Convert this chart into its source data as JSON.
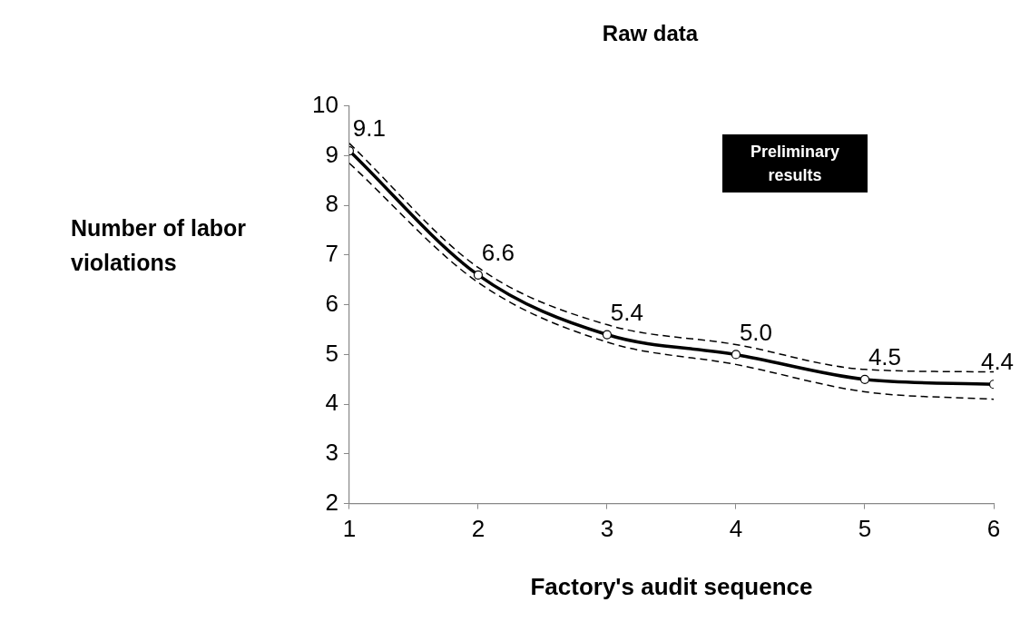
{
  "chart_data": {
    "type": "line",
    "title": "Raw data",
    "xlabel": "Factory's audit sequence",
    "ylabel": "Number of labor violations",
    "x": [
      1,
      2,
      3,
      4,
      5,
      6
    ],
    "series": [
      {
        "color": "#000000",
        "values": [
          9.1,
          6.6,
          5.4,
          5.0,
          4.5,
          4.4
        ],
        "value_labels": [
          "9.1",
          "6.6",
          "5.4",
          "5.0",
          "4.5",
          "4.4"
        ],
        "marker": "circle",
        "line_style": "solid"
      },
      {
        "color": "#000000",
        "values": [
          9.25,
          6.75,
          5.6,
          5.2,
          4.7,
          4.65
        ],
        "marker": "none",
        "line_style": "dashed"
      },
      {
        "color": "#000000",
        "values": [
          8.85,
          6.45,
          5.25,
          4.8,
          4.25,
          4.1
        ],
        "marker": "none",
        "line_style": "dashed"
      }
    ],
    "xlim": [
      1,
      6
    ],
    "xticks": [
      1,
      2,
      3,
      4,
      5,
      6
    ],
    "ylim": [
      2,
      10
    ],
    "yticks": [
      2,
      3,
      4,
      5,
      6,
      7,
      8,
      9,
      10
    ],
    "grid": false,
    "legend": false,
    "annotations": [
      "Preliminary results"
    ]
  }
}
